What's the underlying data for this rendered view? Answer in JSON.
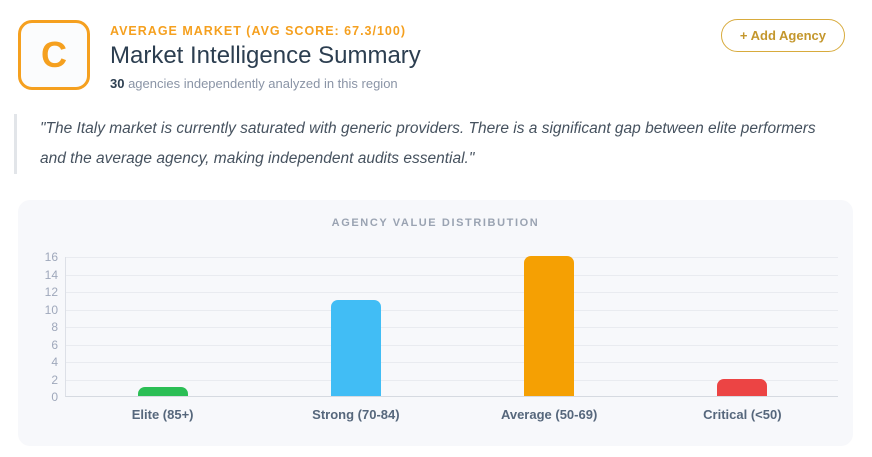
{
  "header": {
    "logo_letter": "C",
    "kicker": "AVERAGE MARKET (AVG SCORE: 67.3/100)",
    "title": "Market Intelligence Summary",
    "subtitle_count": "30",
    "subtitle_rest": " agencies independently analyzed in this region",
    "add_agency_label": "+ Add Agency"
  },
  "quote": "\"The Italy market is currently saturated with generic providers. There is a significant gap between elite performers and the average agency, making independent audits essential.\"",
  "chart_data": {
    "type": "bar",
    "title": "AGENCY VALUE DISTRIBUTION",
    "categories": [
      "Elite (85+)",
      "Strong (70-84)",
      "Average (50-69)",
      "Critical (<50)"
    ],
    "values": [
      1,
      11,
      16,
      2
    ],
    "bar_colors": [
      "#2bbe55",
      "#41bdf5",
      "#f5a003",
      "#ec4444"
    ],
    "xlabel": "",
    "ylabel": "",
    "ylim": [
      0,
      16
    ],
    "ytick_step": 2,
    "grid": true,
    "legend": false
  },
  "colors": {
    "accent_orange": "#f5a01f",
    "gold_button_text": "#c4972d",
    "gold_button_border": "#d8ab3d",
    "title_navy": "#2c3e50",
    "muted_gray": "#8a94a6",
    "card_background": "#f7f8fb"
  }
}
